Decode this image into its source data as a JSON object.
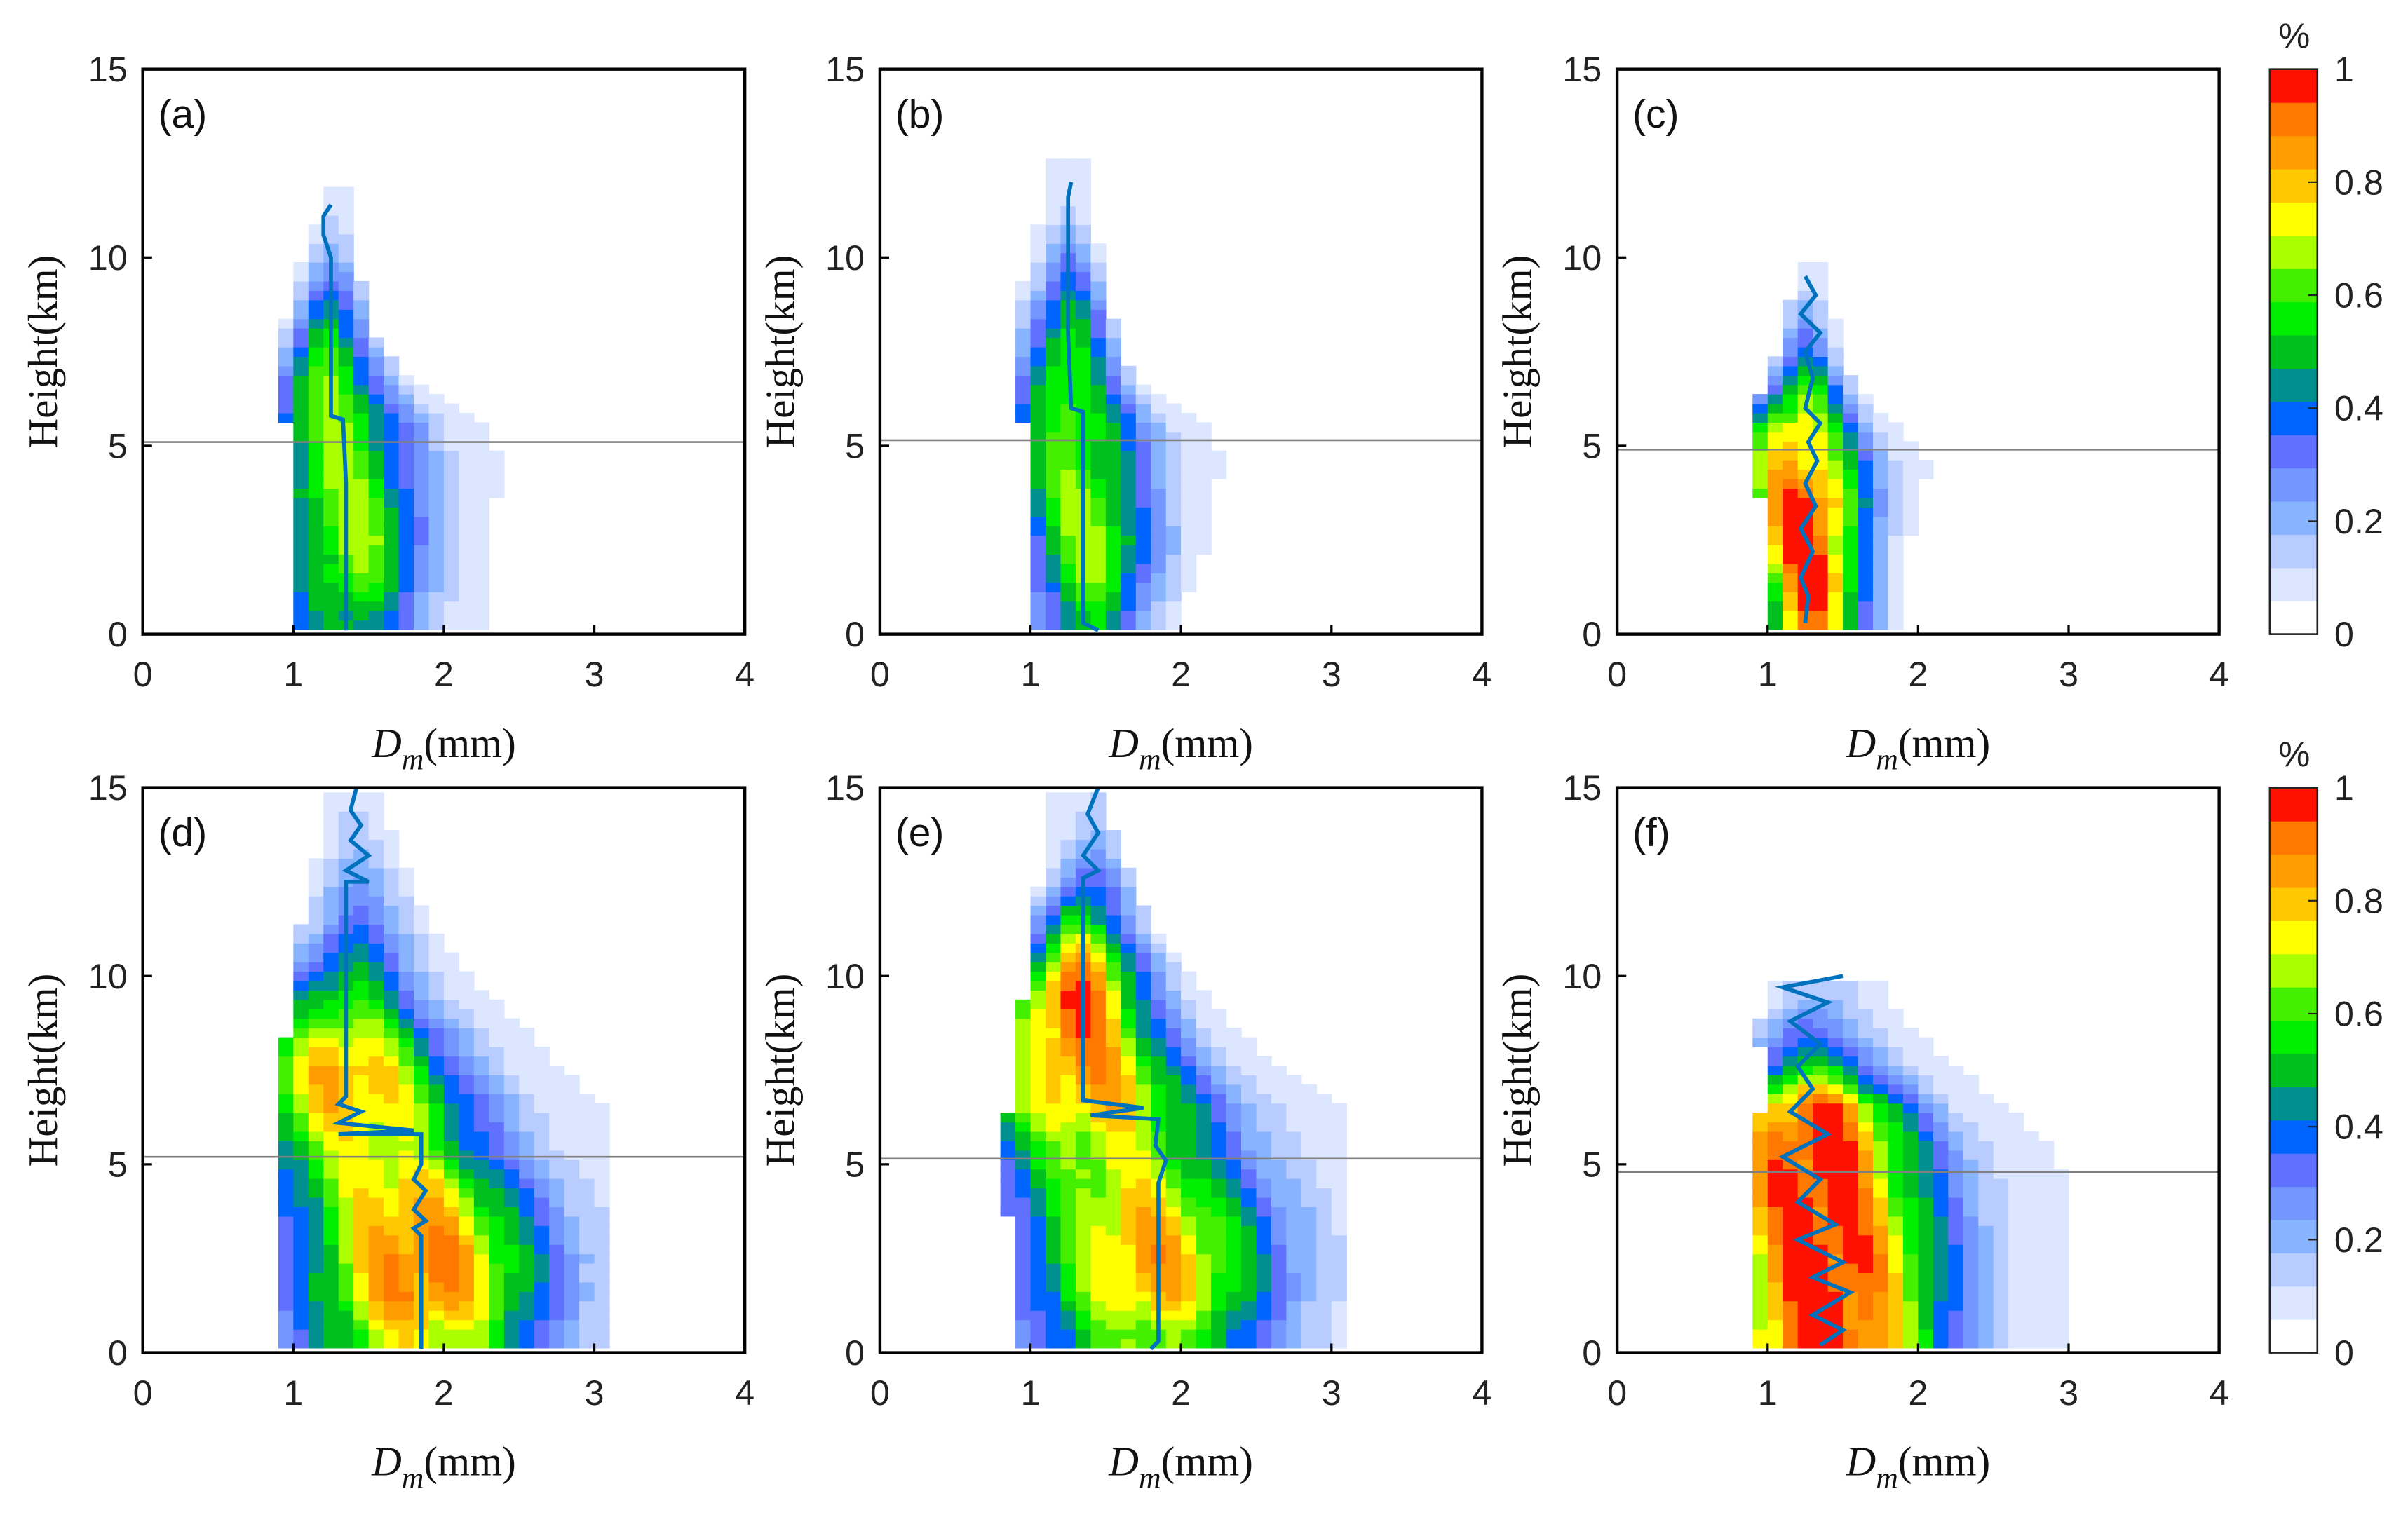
{
  "colorbar": {
    "title": "%",
    "ticks": [
      "0",
      "0.2",
      "0.4",
      "0.6",
      "0.8",
      "1"
    ],
    "range": [
      0,
      1
    ],
    "colors": [
      "#ffffff",
      "#dce6ff",
      "#b8ccff",
      "#88b4ff",
      "#7497ff",
      "#6070ff",
      "#0064ff",
      "#009090",
      "#00c020",
      "#00ee00",
      "#44f000",
      "#aaff00",
      "#ffff00",
      "#ffc800",
      "#ff9c00",
      "#ff7800",
      "#ff1000"
    ]
  },
  "chart_data": [
    {
      "type": "heatmap",
      "panel": "(a)",
      "xlabel": {
        "var": "D",
        "sub": "m",
        "unit": "(mm)"
      },
      "ylabel": "Height(km)",
      "xlim": [
        0,
        4
      ],
      "ylim": [
        0,
        15
      ],
      "xticks": [
        "0",
        "1",
        "2",
        "3",
        "4"
      ],
      "yticks": [
        "0",
        "5",
        "10",
        "15"
      ],
      "melting_layer_km": 5.1,
      "density_rows_columns": [
        "height_km",
        "dm_min",
        "dm_max",
        "peak_dm",
        "peak_value"
      ],
      "density_rows": [
        [
          0.5,
          1.0,
          2.3,
          1.35,
          0.5
        ],
        [
          1.5,
          1.0,
          2.3,
          1.4,
          0.62
        ],
        [
          2.5,
          1.0,
          2.3,
          1.4,
          0.66
        ],
        [
          3.5,
          1.0,
          2.35,
          1.35,
          0.66
        ],
        [
          4.5,
          0.95,
          2.4,
          1.3,
          0.62
        ],
        [
          5.5,
          0.95,
          2.3,
          1.3,
          0.62
        ],
        [
          6.5,
          0.9,
          1.9,
          1.25,
          0.62
        ],
        [
          7.5,
          0.9,
          1.6,
          1.25,
          0.58
        ],
        [
          8.5,
          0.95,
          1.5,
          1.25,
          0.48
        ],
        [
          9.5,
          1.0,
          1.45,
          1.25,
          0.3
        ],
        [
          10.5,
          1.1,
          1.4,
          1.25,
          0.15
        ],
        [
          11.3,
          1.2,
          1.35,
          1.25,
          0.06
        ]
      ],
      "mean_profile": [
        [
          1.35,
          0.1
        ],
        [
          1.35,
          2
        ],
        [
          1.35,
          4
        ],
        [
          1.33,
          5.7
        ],
        [
          1.25,
          5.8
        ],
        [
          1.25,
          8
        ],
        [
          1.25,
          10
        ],
        [
          1.2,
          10.6
        ],
        [
          1.2,
          11.1
        ],
        [
          1.25,
          11.4
        ]
      ]
    },
    {
      "type": "heatmap",
      "panel": "(b)",
      "xlabel": {
        "var": "D",
        "sub": "m",
        "unit": "(mm)"
      },
      "ylabel": "Height(km)",
      "xlim": [
        0,
        4
      ],
      "ylim": [
        0,
        15
      ],
      "xticks": [
        "0",
        "1",
        "2",
        "3",
        "4"
      ],
      "yticks": [
        "0",
        "5",
        "10",
        "15"
      ],
      "melting_layer_km": 5.15,
      "density_rows_columns": [
        "height_km",
        "dm_min",
        "dm_max",
        "peak_dm",
        "peak_value"
      ],
      "density_rows": [
        [
          0.5,
          1.0,
          2.0,
          1.4,
          0.5
        ],
        [
          1.5,
          1.0,
          2.1,
          1.4,
          0.62
        ],
        [
          2.5,
          1.0,
          2.2,
          1.4,
          0.66
        ],
        [
          3.5,
          1.0,
          2.2,
          1.35,
          0.66
        ],
        [
          4.5,
          0.95,
          2.3,
          1.3,
          0.6
        ],
        [
          5.5,
          0.95,
          2.2,
          1.3,
          0.6
        ],
        [
          6.5,
          0.9,
          1.8,
          1.25,
          0.62
        ],
        [
          7.5,
          0.9,
          1.6,
          1.25,
          0.6
        ],
        [
          8.5,
          0.9,
          1.55,
          1.25,
          0.5
        ],
        [
          9.5,
          0.95,
          1.5,
          1.25,
          0.34
        ],
        [
          10.5,
          1.0,
          1.45,
          1.25,
          0.18
        ],
        [
          11.5,
          1.1,
          1.4,
          1.25,
          0.08
        ],
        [
          12.1,
          1.15,
          1.35,
          1.25,
          0.04
        ]
      ],
      "mean_profile": [
        [
          1.45,
          0.1
        ],
        [
          1.35,
          0.3
        ],
        [
          1.35,
          2
        ],
        [
          1.35,
          4
        ],
        [
          1.35,
          5.9
        ],
        [
          1.27,
          6
        ],
        [
          1.25,
          8
        ],
        [
          1.25,
          10
        ],
        [
          1.25,
          11.6
        ],
        [
          1.27,
          12.0
        ]
      ]
    },
    {
      "type": "heatmap",
      "panel": "(c)",
      "xlabel": {
        "var": "D",
        "sub": "m",
        "unit": "(mm)"
      },
      "ylabel": "Height(km)",
      "xlim": [
        0,
        4
      ],
      "ylim": [
        0,
        15
      ],
      "xticks": [
        "0",
        "1",
        "2",
        "3",
        "4"
      ],
      "yticks": [
        "0",
        "5",
        "10",
        "15"
      ],
      "melting_layer_km": 4.9,
      "density_rows_columns": [
        "height_km",
        "dm_min",
        "dm_max",
        "peak_dm",
        "peak_value"
      ],
      "density_rows": [
        [
          0.5,
          1.0,
          1.9,
          1.3,
          0.9
        ],
        [
          1.5,
          1.0,
          1.9,
          1.3,
          1.0
        ],
        [
          2.5,
          0.95,
          1.95,
          1.25,
          1.0
        ],
        [
          3.5,
          0.95,
          2.0,
          1.25,
          1.0
        ],
        [
          4.5,
          0.9,
          2.1,
          1.2,
          0.85
        ],
        [
          5.5,
          0.9,
          1.9,
          1.2,
          0.78
        ],
        [
          6.5,
          0.95,
          1.6,
          1.25,
          0.6
        ],
        [
          7.5,
          1.05,
          1.5,
          1.25,
          0.35
        ],
        [
          8.5,
          1.1,
          1.45,
          1.25,
          0.18
        ],
        [
          9.4,
          1.2,
          1.35,
          1.25,
          0.06
        ]
      ],
      "mean_profile": [
        [
          1.25,
          0.3
        ],
        [
          1.27,
          1
        ],
        [
          1.22,
          1.5
        ],
        [
          1.3,
          2.2
        ],
        [
          1.22,
          2.8
        ],
        [
          1.32,
          3.4
        ],
        [
          1.25,
          4
        ],
        [
          1.33,
          4.6
        ],
        [
          1.27,
          5.1
        ],
        [
          1.35,
          5.6
        ],
        [
          1.25,
          6.0
        ],
        [
          1.3,
          6.8
        ],
        [
          1.25,
          7.5
        ],
        [
          1.35,
          8.0
        ],
        [
          1.22,
          8.5
        ],
        [
          1.32,
          9.0
        ],
        [
          1.25,
          9.5
        ]
      ]
    },
    {
      "type": "heatmap",
      "panel": "(d)",
      "xlabel": {
        "var": "D",
        "sub": "m",
        "unit": "(mm)"
      },
      "ylabel": "Height(km)",
      "xlim": [
        0,
        4
      ],
      "ylim": [
        0,
        15
      ],
      "xticks": [
        "0",
        "1",
        "2",
        "3",
        "4"
      ],
      "yticks": [
        "0",
        "5",
        "10",
        "15"
      ],
      "melting_layer_km": 5.2,
      "density_rows_columns": [
        "height_km",
        "dm_min",
        "dm_max",
        "peak_dm",
        "peak_value"
      ],
      "density_rows": [
        [
          0.5,
          0.9,
          3.1,
          1.85,
          0.75
        ],
        [
          1.5,
          0.9,
          3.1,
          1.85,
          0.9
        ],
        [
          2.5,
          0.9,
          3.1,
          1.85,
          0.92
        ],
        [
          3.5,
          0.9,
          3.1,
          1.8,
          0.85
        ],
        [
          4.5,
          0.85,
          3.1,
          1.7,
          0.78
        ],
        [
          5.5,
          0.85,
          3.1,
          1.5,
          0.72
        ],
        [
          6.5,
          0.85,
          3.1,
          1.4,
          0.8
        ],
        [
          7.5,
          0.9,
          2.8,
          1.35,
          0.85
        ],
        [
          8.5,
          0.95,
          2.6,
          1.35,
          0.72
        ],
        [
          9.5,
          1.0,
          2.3,
          1.35,
          0.55
        ],
        [
          10.5,
          1.0,
          2.1,
          1.4,
          0.4
        ],
        [
          11.5,
          1.05,
          1.9,
          1.45,
          0.3
        ],
        [
          12.5,
          1.1,
          1.8,
          1.45,
          0.22
        ],
        [
          13.5,
          1.2,
          1.7,
          1.45,
          0.15
        ],
        [
          14.5,
          1.2,
          1.6,
          1.4,
          0.1
        ]
      ],
      "mean_profile": [
        [
          1.85,
          0.1
        ],
        [
          1.85,
          2
        ],
        [
          1.85,
          3.1
        ],
        [
          1.8,
          3.3
        ],
        [
          1.88,
          3.5
        ],
        [
          1.8,
          3.8
        ],
        [
          1.88,
          4.3
        ],
        [
          1.8,
          4.6
        ],
        [
          1.85,
          5.0
        ],
        [
          1.85,
          5.8
        ],
        [
          1.3,
          5.8
        ],
        [
          1.8,
          5.9
        ],
        [
          1.3,
          6.1
        ],
        [
          1.45,
          6.4
        ],
        [
          1.3,
          6.6
        ],
        [
          1.35,
          6.8
        ],
        [
          1.35,
          8
        ],
        [
          1.35,
          12.5
        ],
        [
          1.5,
          12.5
        ],
        [
          1.35,
          12.8
        ],
        [
          1.5,
          13.2
        ],
        [
          1.38,
          13.6
        ],
        [
          1.45,
          14
        ],
        [
          1.38,
          14.4
        ],
        [
          1.42,
          15
        ]
      ]
    },
    {
      "type": "heatmap",
      "panel": "(e)",
      "xlabel": {
        "var": "D",
        "sub": "m",
        "unit": "(mm)"
      },
      "ylabel": "Height(km)",
      "xlim": [
        0,
        4
      ],
      "ylim": [
        0,
        15
      ],
      "xticks": [
        "0",
        "1",
        "2",
        "3",
        "4"
      ],
      "yticks": [
        "0",
        "5",
        "10",
        "15"
      ],
      "melting_layer_km": 5.15,
      "density_rows_columns": [
        "height_km",
        "dm_min",
        "dm_max",
        "peak_dm",
        "peak_value"
      ],
      "density_rows": [
        [
          0.5,
          0.9,
          3.1,
          1.8,
          0.65
        ],
        [
          1.5,
          0.9,
          3.1,
          1.8,
          0.8
        ],
        [
          2.5,
          0.9,
          3.1,
          1.8,
          0.85
        ],
        [
          3.5,
          0.85,
          3.1,
          1.75,
          0.8
        ],
        [
          4.5,
          0.8,
          3.1,
          1.65,
          0.72
        ],
        [
          5.5,
          0.8,
          3.1,
          1.5,
          0.7
        ],
        [
          6.5,
          0.85,
          3.1,
          1.4,
          0.8
        ],
        [
          7.5,
          0.9,
          2.7,
          1.35,
          0.88
        ],
        [
          8.5,
          0.9,
          2.4,
          1.3,
          0.92
        ],
        [
          9.5,
          0.95,
          2.2,
          1.3,
          0.95
        ],
        [
          10.5,
          1.0,
          2.0,
          1.35,
          0.8
        ],
        [
          11.5,
          1.0,
          1.8,
          1.35,
          0.55
        ],
        [
          12.5,
          1.05,
          1.7,
          1.4,
          0.35
        ],
        [
          13.5,
          1.1,
          1.6,
          1.4,
          0.2
        ],
        [
          14.5,
          1.15,
          1.5,
          1.4,
          0.1
        ]
      ],
      "mean_profile": [
        [
          1.8,
          0.1
        ],
        [
          1.85,
          0.3
        ],
        [
          1.85,
          2
        ],
        [
          1.85,
          4.5
        ],
        [
          1.9,
          5.1
        ],
        [
          1.83,
          5.5
        ],
        [
          1.85,
          6.2
        ],
        [
          1.4,
          6.3
        ],
        [
          1.75,
          6.5
        ],
        [
          1.35,
          6.7
        ],
        [
          1.35,
          8
        ],
        [
          1.35,
          12.6
        ],
        [
          1.45,
          12.8
        ],
        [
          1.35,
          13.2
        ],
        [
          1.45,
          13.8
        ],
        [
          1.38,
          14.3
        ],
        [
          1.45,
          15
        ]
      ]
    },
    {
      "type": "heatmap",
      "panel": "(f)",
      "xlabel": {
        "var": "D",
        "sub": "m",
        "unit": "(mm)"
      },
      "ylabel": "Height(km)",
      "xlim": [
        0,
        4
      ],
      "ylim": [
        0,
        15
      ],
      "xticks": [
        "0",
        "1",
        "2",
        "3",
        "4"
      ],
      "yticks": [
        "0",
        "5",
        "10",
        "15"
      ],
      "melting_layer_km": 4.8,
      "density_rows_columns": [
        "height_km",
        "dm_min",
        "dm_max",
        "peak_dm",
        "peak_value"
      ],
      "density_rows": [
        [
          0.5,
          0.9,
          3.0,
          1.4,
          1.0
        ],
        [
          1.5,
          0.9,
          3.0,
          1.4,
          1.0
        ],
        [
          2.5,
          0.9,
          3.0,
          1.4,
          1.0
        ],
        [
          3.5,
          0.9,
          3.0,
          1.35,
          1.0
        ],
        [
          4.5,
          0.9,
          3.0,
          1.3,
          1.0
        ],
        [
          5.5,
          0.9,
          2.9,
          1.3,
          1.0
        ],
        [
          6.5,
          0.95,
          2.6,
          1.3,
          0.95
        ],
        [
          7.5,
          1.0,
          2.3,
          1.3,
          0.55
        ],
        [
          8.5,
          0.9,
          2.0,
          1.3,
          0.3
        ],
        [
          9.5,
          1.0,
          1.8,
          1.35,
          0.15
        ]
      ],
      "mean_profile": [
        [
          1.35,
          0.2
        ],
        [
          1.5,
          0.6
        ],
        [
          1.3,
          1.0
        ],
        [
          1.55,
          1.6
        ],
        [
          1.3,
          2.0
        ],
        [
          1.5,
          2.4
        ],
        [
          1.2,
          3.0
        ],
        [
          1.45,
          3.4
        ],
        [
          1.2,
          4.0
        ],
        [
          1.35,
          4.6
        ],
        [
          1.1,
          5.2
        ],
        [
          1.4,
          5.8
        ],
        [
          1.15,
          6.4
        ],
        [
          1.3,
          7.0
        ],
        [
          1.2,
          7.6
        ],
        [
          1.35,
          8.2
        ],
        [
          1.15,
          8.8
        ],
        [
          1.4,
          9.3
        ],
        [
          1.1,
          9.7
        ],
        [
          1.5,
          10.0
        ]
      ]
    }
  ]
}
